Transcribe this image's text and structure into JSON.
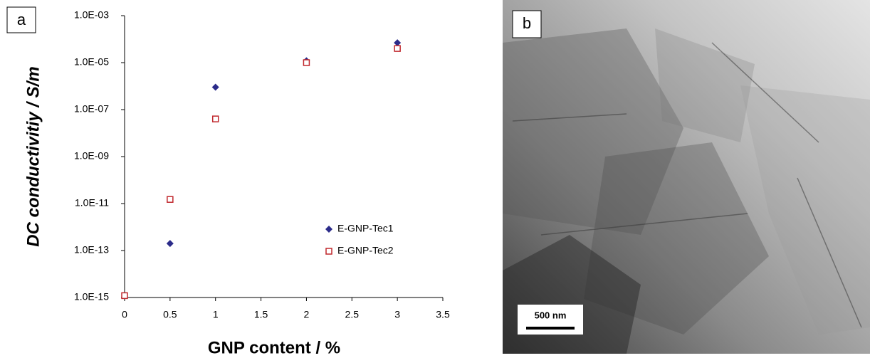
{
  "chart_data": {
    "type": "scatter",
    "panel_label": "a",
    "xlabel": "GNP content / %",
    "ylabel": "DC conductivitiy / S/m",
    "xlim": [
      0,
      3.5
    ],
    "xticks": [
      0,
      0.5,
      1,
      1.5,
      2,
      2.5,
      3,
      3.5
    ],
    "ylim": [
      1e-15,
      0.001
    ],
    "yscale": "log",
    "yticks": [
      {
        "value": 1e-15,
        "label": "1.0E-15"
      },
      {
        "value": 1e-13,
        "label": "1.0E-13"
      },
      {
        "value": 1e-11,
        "label": "1.0E-11"
      },
      {
        "value": 1e-09,
        "label": "1.0E-09"
      },
      {
        "value": 1e-07,
        "label": "1.0E-07"
      },
      {
        "value": 1e-05,
        "label": "1.0E-05"
      },
      {
        "value": 0.001,
        "label": "1.0E-03"
      }
    ],
    "grid": false,
    "legend": "lower right",
    "series": [
      {
        "name": "E-GNP-Tec1",
        "color": "#2b2b8a",
        "marker": "diamond",
        "x": [
          0.5,
          1,
          2,
          3
        ],
        "values": [
          2e-13,
          9e-07,
          1.2e-05,
          7e-05
        ]
      },
      {
        "name": "E-GNP-Tec2",
        "color": "#c0282d",
        "marker": "open-square",
        "x": [
          0,
          0.5,
          1,
          2,
          3
        ],
        "values": [
          1.2e-15,
          1.5e-11,
          4e-08,
          1e-05,
          4e-05
        ]
      }
    ]
  },
  "image": {
    "label": "b",
    "scale_bar": "500 nm"
  }
}
